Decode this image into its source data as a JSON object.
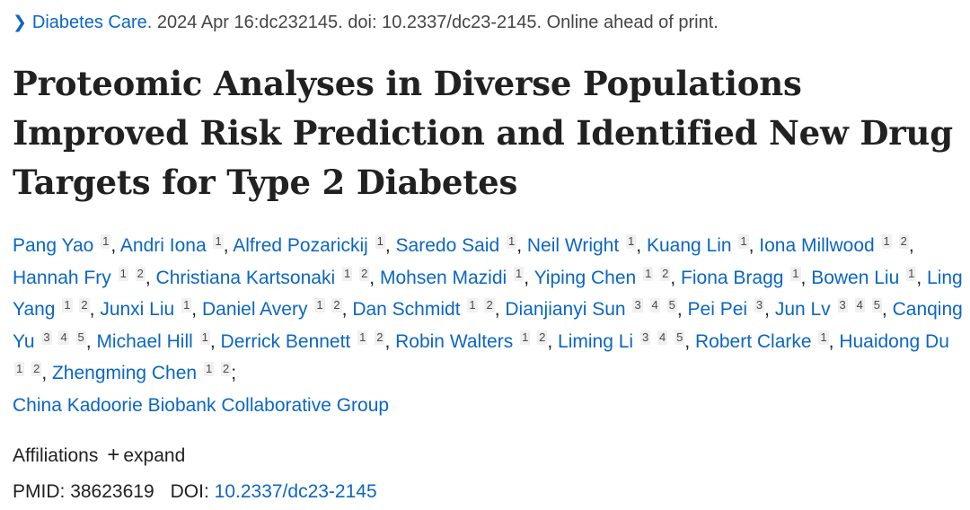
{
  "citation": {
    "journal": "Diabetes Care.",
    "details": "2024 Apr 16:dc232145. doi: 10.2337/dc23-2145. Online ahead of print."
  },
  "title": "Proteomic Analyses in Diverse Populations Improved Risk Prediction and Identified New Drug Targets for Type 2 Diabetes",
  "authors": [
    {
      "name": "Pang Yao",
      "affs": [
        "1"
      ]
    },
    {
      "name": "Andri Iona",
      "affs": [
        "1"
      ]
    },
    {
      "name": "Alfred Pozarickij",
      "affs": [
        "1"
      ]
    },
    {
      "name": "Saredo Said",
      "affs": [
        "1"
      ]
    },
    {
      "name": "Neil Wright",
      "affs": [
        "1"
      ]
    },
    {
      "name": "Kuang Lin",
      "affs": [
        "1"
      ]
    },
    {
      "name": "Iona Millwood",
      "affs": [
        "1",
        "2"
      ]
    },
    {
      "name": "Hannah Fry",
      "affs": [
        "1",
        "2"
      ]
    },
    {
      "name": "Christiana Kartsonaki",
      "affs": [
        "1",
        "2"
      ]
    },
    {
      "name": "Mohsen Mazidi",
      "affs": [
        "1"
      ]
    },
    {
      "name": "Yiping Chen",
      "affs": [
        "1",
        "2"
      ]
    },
    {
      "name": "Fiona Bragg",
      "affs": [
        "1"
      ]
    },
    {
      "name": "Bowen Liu",
      "affs": [
        "1"
      ]
    },
    {
      "name": "Ling Yang",
      "affs": [
        "1",
        "2"
      ]
    },
    {
      "name": "Junxi Liu",
      "affs": [
        "1"
      ]
    },
    {
      "name": "Daniel Avery",
      "affs": [
        "1",
        "2"
      ]
    },
    {
      "name": "Dan Schmidt",
      "affs": [
        "1",
        "2"
      ]
    },
    {
      "name": "Dianjianyi Sun",
      "affs": [
        "3",
        "4",
        "5"
      ]
    },
    {
      "name": "Pei Pei",
      "affs": [
        "3"
      ]
    },
    {
      "name": "Jun Lv",
      "affs": [
        "3",
        "4",
        "5"
      ]
    },
    {
      "name": "Canqing Yu",
      "affs": [
        "3",
        "4",
        "5"
      ]
    },
    {
      "name": "Michael Hill",
      "affs": [
        "1"
      ]
    },
    {
      "name": "Derrick Bennett",
      "affs": [
        "1",
        "2"
      ]
    },
    {
      "name": "Robin Walters",
      "affs": [
        "1",
        "2"
      ]
    },
    {
      "name": "Liming Li",
      "affs": [
        "3",
        "4",
        "5"
      ]
    },
    {
      "name": "Robert Clarke",
      "affs": [
        "1"
      ]
    },
    {
      "name": "Huaidong Du",
      "affs": [
        "1",
        "2"
      ]
    },
    {
      "name": "Zhengming Chen",
      "affs": [
        "1",
        "2"
      ]
    }
  ],
  "group_author": "China Kadoorie Biobank Collaborative Group",
  "affiliations": {
    "label": "Affiliations",
    "expand_label": "expand"
  },
  "ids": {
    "pmid_label": "PMID:",
    "pmid": "38623619",
    "doi_label": "DOI:",
    "doi": "10.2337/dc23-2145"
  }
}
